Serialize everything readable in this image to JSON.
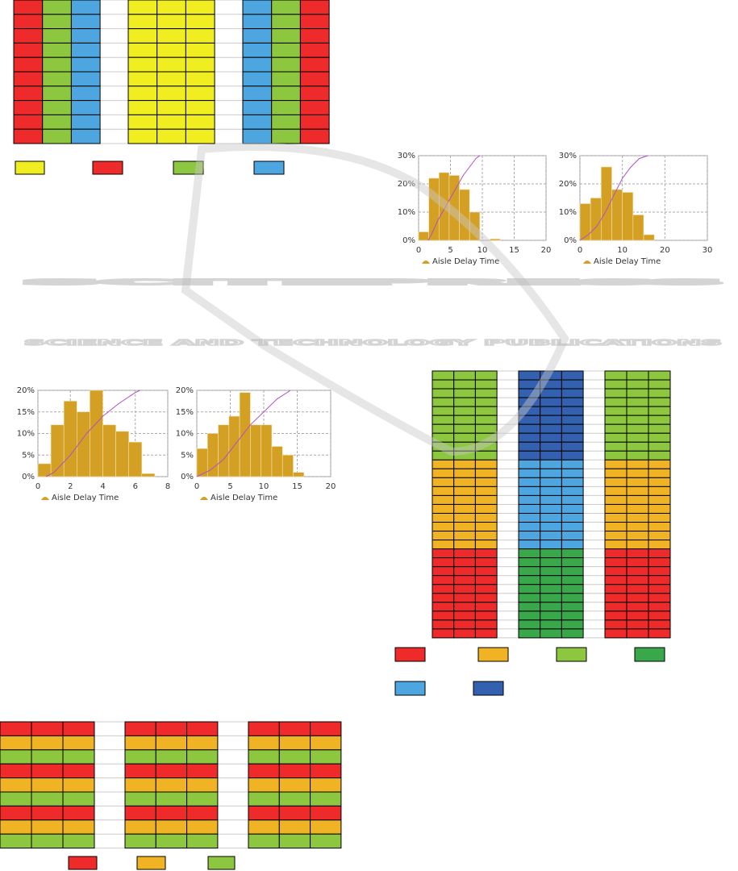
{
  "watermark": {
    "title": "SCITEPRESS",
    "subtitle": "SCIENCE AND TECHNOLOGY PUBLICATIONS"
  },
  "chart_data": [
    {
      "type": "histogram",
      "legend": "Aisle Delay Time",
      "color": "#d4a024",
      "bins": [
        0,
        1.6,
        3.2,
        4.8,
        6.4,
        8,
        9.6,
        11.2,
        12.8
      ],
      "values": [
        3,
        22,
        24,
        23,
        18,
        10,
        0,
        0.5
      ],
      "line": {
        "color": "#b24fc4",
        "x": [
          1.5,
          2,
          3,
          4,
          5,
          6,
          7,
          8,
          9,
          9.6
        ],
        "values": [
          0,
          2,
          7,
          11,
          15,
          19,
          23,
          26,
          29,
          30
        ]
      },
      "xlim": [
        0,
        20
      ],
      "xticks": [
        0,
        5,
        10,
        15,
        20
      ],
      "ylim": [
        0,
        30
      ],
      "yticks": [
        {
          "value": 0,
          "label": "0%"
        },
        {
          "value": 10,
          "label": "10%"
        },
        {
          "value": 20,
          "label": "20%"
        },
        {
          "value": 30,
          "label": "30%"
        }
      ],
      "grid": true
    },
    {
      "type": "histogram",
      "legend": "Aisle Delay Time",
      "color": "#d4a024",
      "bins": [
        0,
        2.5,
        5,
        7.5,
        10,
        12.5,
        15,
        17.5
      ],
      "values": [
        13,
        15,
        26,
        18,
        17,
        9,
        2
      ],
      "line": {
        "color": "#b24fc4",
        "x": [
          0,
          2,
          4,
          6,
          8,
          10,
          12,
          14,
          16
        ],
        "values": [
          0,
          2,
          5,
          10,
          16,
          22,
          26,
          29,
          30
        ]
      },
      "xlim": [
        0,
        30
      ],
      "xticks": [
        0,
        10,
        20,
        30
      ],
      "ylim": [
        0,
        30
      ],
      "yticks": [
        {
          "value": 0,
          "label": "0%"
        },
        {
          "value": 10,
          "label": "10%"
        },
        {
          "value": 20,
          "label": "20%"
        },
        {
          "value": 30,
          "label": "30%"
        }
      ],
      "grid": true
    },
    {
      "type": "histogram",
      "legend": "Aisle Delay Time",
      "color": "#d4a024",
      "bins": [
        0,
        0.8,
        1.6,
        2.4,
        3.2,
        4,
        4.8,
        5.6,
        6.4,
        7.2
      ],
      "values": [
        3,
        12,
        17.5,
        15,
        20,
        12,
        10.5,
        8,
        0.7
      ],
      "line": {
        "color": "#b24fc4",
        "x": [
          0.5,
          1,
          2,
          3,
          4,
          5,
          6,
          6.3
        ],
        "values": [
          0,
          1,
          5,
          10,
          14,
          17,
          19.5,
          20
        ]
      },
      "xlim": [
        0,
        8
      ],
      "xticks": [
        0,
        2,
        4,
        6,
        8
      ],
      "ylim": [
        0,
        20
      ],
      "yticks": [
        {
          "value": 0,
          "label": "0%"
        },
        {
          "value": 5,
          "label": "5%"
        },
        {
          "value": 10,
          "label": "10%"
        },
        {
          "value": 15,
          "label": "15%"
        },
        {
          "value": 20,
          "label": "20%"
        }
      ],
      "grid": true
    },
    {
      "type": "histogram",
      "legend": "Aisle Delay Time",
      "color": "#d4a024",
      "bins": [
        0,
        1.6,
        3.2,
        4.8,
        6.4,
        8,
        9.6,
        11.2,
        12.8,
        14.4,
        16
      ],
      "values": [
        6.5,
        10,
        12,
        14,
        19.5,
        12,
        12,
        7,
        5,
        1
      ],
      "line": {
        "color": "#b24fc4",
        "x": [
          0,
          2,
          4,
          6,
          8,
          10,
          12,
          14
        ],
        "values": [
          0,
          1.5,
          4,
          8,
          12,
          15,
          18,
          20
        ]
      },
      "xlim": [
        0,
        20
      ],
      "xticks": [
        0,
        5,
        10,
        15,
        20
      ],
      "ylim": [
        0,
        20
      ],
      "yticks": [
        {
          "value": 0,
          "label": "0%"
        },
        {
          "value": 5,
          "label": "5%"
        },
        {
          "value": 10,
          "label": "10%"
        },
        {
          "value": 15,
          "label": "15%"
        },
        {
          "value": 20,
          "label": "20%"
        }
      ],
      "grid": true
    }
  ]
}
